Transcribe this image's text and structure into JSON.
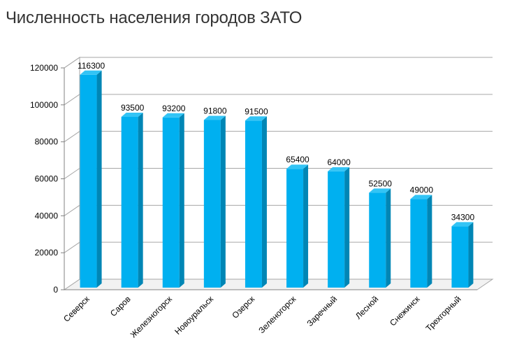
{
  "title": "Численность населения городов ЗАТО",
  "chart_data": {
    "type": "bar",
    "title": "Численность населения городов ЗАТО",
    "categories": [
      "Северск",
      "Саров",
      "Железногорск",
      "Новоуральск",
      "Озерск",
      "Зеленогорск",
      "Заречный",
      "Лесной",
      "Снежинск",
      "Трехгорный"
    ],
    "values": [
      116300,
      93500,
      93200,
      91800,
      91500,
      65400,
      64000,
      52500,
      49000,
      34300
    ],
    "data_labels": [
      "116300",
      "93500",
      "93200",
      "91800",
      "91500",
      "65400",
      "64000",
      "52500",
      "49000",
      "34300"
    ],
    "y_ticks": [
      0,
      20000,
      40000,
      60000,
      80000,
      100000,
      120000
    ],
    "ylim": [
      0,
      120000
    ],
    "grid": true,
    "legend": "none",
    "colors": {
      "bar_front": "#00b0f0",
      "bar_side": "#0086b5",
      "bar_top": "#33c4f5",
      "grid": "#a6a6a6",
      "wall": "#ffffff"
    }
  }
}
